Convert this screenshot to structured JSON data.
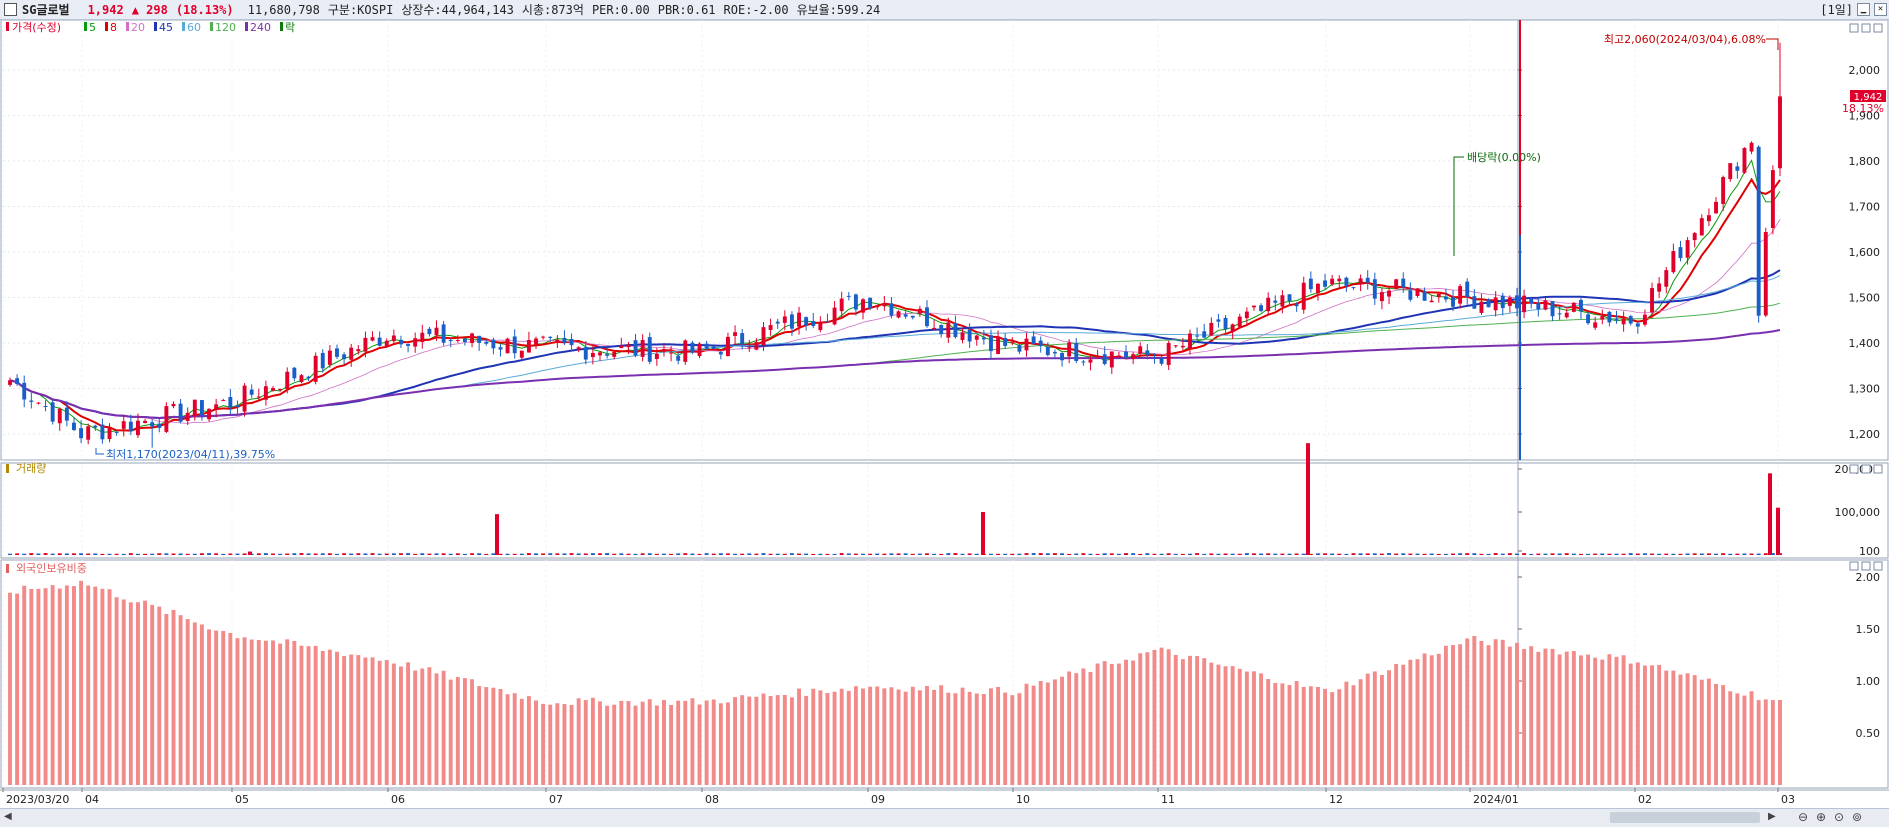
{
  "header": {
    "name": "SG글로벌",
    "price": "1,942",
    "change": "▲ 298",
    "change_pct": "(18.13%)",
    "volume": "11,680,798",
    "market": "구분:KOSPI",
    "shares": "상장수:44,964,143",
    "mcap": "시총:873억",
    "per": "PER:0.00",
    "pbr": "PBR:0.61",
    "roe": "ROE:-2.00",
    "retention": "유보율:599.24",
    "period": "[1일]",
    "colors": {
      "up": "#e0002b",
      "down": "#1a5fc8",
      "text": "#111"
    }
  },
  "legend": {
    "price_label": "가격(수정)",
    "ma_labels": [
      "5",
      "8",
      "20",
      "45",
      "60",
      "120",
      "240"
    ],
    "ma_colors": [
      "#0a9a0a",
      "#e00000",
      "#d070c8",
      "#1f33b5",
      "#5aaad8",
      "#50b050",
      "#7a2fb0"
    ],
    "ex_label": "락",
    "volume_label": "거래량",
    "foreign_label": "외국인보유비중"
  },
  "annotations": {
    "high": "최고2,060(2024/03/04),6.08%",
    "low": "최저1,170(2023/04/11),39.75%",
    "dividend": "배당락(0.00%)",
    "last_price": "1,942",
    "last_pct": "18.13%"
  },
  "chart_data": [
    {
      "type": "candlestick",
      "title": "",
      "ylim": [
        1140,
        2120
      ],
      "y_ticks": [
        "2,000",
        "1,900",
        "1,800",
        "1,700",
        "1,600",
        "1,500",
        "1,400",
        "1,300",
        "1,200"
      ],
      "x_ticks": [
        "2023/03/20",
        "04",
        "05",
        "06",
        "07",
        "08",
        "09",
        "10",
        "11",
        "12",
        "2024/01",
        "02",
        "03"
      ],
      "keypoints": [
        {
          "month": "2023/03/20",
          "close": 1330
        },
        {
          "month": "04",
          "close": 1200
        },
        {
          "month": "05",
          "close": 1270
        },
        {
          "month": "06",
          "close": 1420
        },
        {
          "month": "07",
          "close": 1390
        },
        {
          "month": "08",
          "close": 1380
        },
        {
          "month": "09",
          "close": 1500
        },
        {
          "month": "10",
          "close": 1390
        },
        {
          "month": "11",
          "close": 1370
        },
        {
          "month": "12",
          "close": 1530
        },
        {
          "month": "2024/01",
          "close": 1500
        },
        {
          "month": "02",
          "close": 1450
        },
        {
          "month": "03",
          "close": 1942
        }
      ],
      "high": 2060,
      "low": 1170
    },
    {
      "type": "bar",
      "title": "",
      "y_ticks": [
        "200,000",
        "100,000",
        "100"
      ],
      "spikes": [
        {
          "month": "05",
          "value": 8000
        },
        {
          "month": "06",
          "value": 95000
        },
        {
          "month": "09",
          "value": 100000
        },
        {
          "month": "12",
          "value": 260000
        },
        {
          "month": "03",
          "value": 190000
        },
        {
          "month": "03",
          "value": 110000
        }
      ]
    },
    {
      "type": "bar",
      "title": "",
      "y_ticks": [
        "2.00",
        "1.50",
        "1.00",
        "0.50"
      ],
      "keypoints": [
        {
          "month": "2023/03/20",
          "value": 1.85
        },
        {
          "month": "04",
          "value": 1.95
        },
        {
          "month": "05",
          "value": 1.45
        },
        {
          "month": "06",
          "value": 1.2
        },
        {
          "month": "07",
          "value": 0.8
        },
        {
          "month": "08",
          "value": 0.8
        },
        {
          "month": "09",
          "value": 0.95
        },
        {
          "month": "10",
          "value": 0.9
        },
        {
          "month": "11",
          "value": 1.3
        },
        {
          "month": "12",
          "value": 0.9
        },
        {
          "month": "2024/01",
          "value": 1.4
        },
        {
          "month": "02",
          "value": 1.2
        },
        {
          "month": "03",
          "value": 0.8
        }
      ]
    }
  ]
}
